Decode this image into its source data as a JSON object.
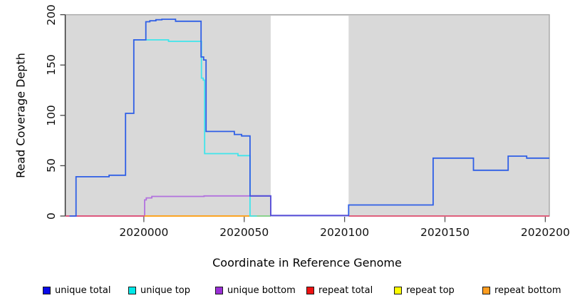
{
  "chart_data": {
    "type": "line",
    "subtype": "step-coverage",
    "title": "",
    "xlabel": "Coordinate in Reference Genome",
    "ylabel": "Read Coverage Depth",
    "xlim": [
      2019961,
      2020202
    ],
    "ylim": [
      0,
      200
    ],
    "x_ticks": [
      2020000,
      2020050,
      2020100,
      2020150,
      2020200
    ],
    "y_ticks": [
      0,
      50,
      100,
      150,
      200
    ],
    "grid": false,
    "plot_bg_color": "#d9d9d9",
    "plot_border_color": "#a8a8a8",
    "gap_region": {
      "x1": 2020063.2,
      "x2": 2020102,
      "fill": "#ffffff"
    },
    "series": [
      {
        "name": "unique bottom",
        "line_color": "#b272de",
        "segments": [
          [
            [
              2019961,
              0
            ],
            [
              2020000.4,
              0
            ],
            [
              2020000.4,
              16
            ],
            [
              2020001.2,
              16
            ],
            [
              2020001.2,
              18
            ],
            [
              2020004,
              18
            ],
            [
              2020004,
              19.5
            ],
            [
              2020030,
              19.5
            ],
            [
              2020030,
              20
            ],
            [
              2020052.9,
              20
            ]
          ]
        ]
      },
      {
        "name": "repeat top",
        "line_color": "#f2e63c",
        "segments": [
          [
            [
              2020000.4,
              0
            ],
            [
              2020063.2,
              0
            ]
          ]
        ]
      },
      {
        "name": "repeat bottom",
        "line_color": "#ff9c1c",
        "segments": [
          [
            [
              2020000.4,
              0
            ],
            [
              2020056.4,
              0
            ]
          ]
        ]
      },
      {
        "name": "repeat total",
        "line_color": "#e25070",
        "segments": [
          [
            [
              2019961,
              0
            ],
            [
              2020000.4,
              0
            ]
          ],
          [
            [
              2020102,
              0
            ],
            [
              2020202,
              0
            ]
          ]
        ]
      },
      {
        "name": "unique top",
        "line_color": "#3fe5eb",
        "segments": [
          [
            [
              2019995,
              175
            ],
            [
              2020012.3,
              175
            ],
            [
              2020012.3,
              173.5
            ],
            [
              2020028.7,
              173.5
            ],
            [
              2020028.7,
              137
            ],
            [
              2020029.6,
              137
            ],
            [
              2020029.6,
              135
            ],
            [
              2020030.3,
              135
            ],
            [
              2020030.3,
              62
            ],
            [
              2020046.9,
              62
            ],
            [
              2020046.9,
              60
            ],
            [
              2020052.9,
              60
            ],
            [
              2020052.9,
              0
            ],
            [
              2020056.4,
              0
            ]
          ]
        ]
      },
      {
        "name": "unique total",
        "line_color": "#2f5fe6",
        "segments": [
          [
            [
              2019963,
              0
            ],
            [
              2019966.2,
              0
            ],
            [
              2019966.2,
              39
            ],
            [
              2019982.7,
              39
            ],
            [
              2019982.7,
              40.5
            ],
            [
              2019990.9,
              40.5
            ],
            [
              2019990.9,
              102
            ],
            [
              2019995,
              102
            ],
            [
              2019995,
              175
            ],
            [
              2020001,
              175
            ],
            [
              2020001,
              193
            ],
            [
              2020003,
              193
            ],
            [
              2020003,
              194
            ],
            [
              2020006,
              194
            ],
            [
              2020006,
              195
            ],
            [
              2020009,
              195
            ],
            [
              2020009,
              195.5
            ],
            [
              2020015.8,
              195.5
            ],
            [
              2020015.8,
              193.5
            ],
            [
              2020028.5,
              193.5
            ],
            [
              2020028.5,
              158
            ],
            [
              2020029.8,
              158
            ],
            [
              2020029.8,
              155
            ],
            [
              2020031,
              155
            ],
            [
              2020031,
              84
            ],
            [
              2020045.1,
              84
            ],
            [
              2020045.1,
              81
            ],
            [
              2020048.7,
              81
            ],
            [
              2020048.7,
              79.5
            ],
            [
              2020052.9,
              79.5
            ],
            [
              2020052.9,
              20
            ],
            [
              2020063.2,
              20
            ],
            [
              2020063.2,
              0.5
            ],
            [
              2020102,
              0.5
            ],
            [
              2020102,
              11
            ],
            [
              2020144.1,
              11
            ],
            [
              2020144.1,
              57.5
            ],
            [
              2020164.2,
              57.5
            ],
            [
              2020164.2,
              45.5
            ],
            [
              2020181.5,
              45.5
            ],
            [
              2020181.5,
              59.5
            ],
            [
              2020190.7,
              59.5
            ],
            [
              2020190.7,
              57.5
            ],
            [
              2020202,
              57.5
            ]
          ]
        ]
      }
    ],
    "overlap_traces": [
      {
        "name": "unique-top-over-repeat-overlap",
        "color": "#7dd093",
        "points": [
          [
            2020056.4,
            0
          ],
          [
            2020063.2,
            0
          ]
        ]
      },
      {
        "name": "unique-total-over-unique-bottom-overlap",
        "color": "#5a4ed6",
        "points": [
          [
            2020052.9,
            20
          ],
          [
            2020063.2,
            20
          ],
          [
            2020063.2,
            0.5
          ],
          [
            2020102,
            0.5
          ]
        ]
      }
    ],
    "legend": {
      "position": "bottom",
      "items": [
        {
          "label": "unique total",
          "swatch_color": "#0a0ae8"
        },
        {
          "label": "unique top",
          "swatch_color": "#00e8e8"
        },
        {
          "label": "unique bottom",
          "swatch_color": "#9a2fd6"
        },
        {
          "label": "repeat total",
          "swatch_color": "#ee1111"
        },
        {
          "label": "repeat top",
          "swatch_color": "#fcfc00"
        },
        {
          "label": "repeat bottom",
          "swatch_color": "#ff9d20"
        }
      ]
    }
  }
}
